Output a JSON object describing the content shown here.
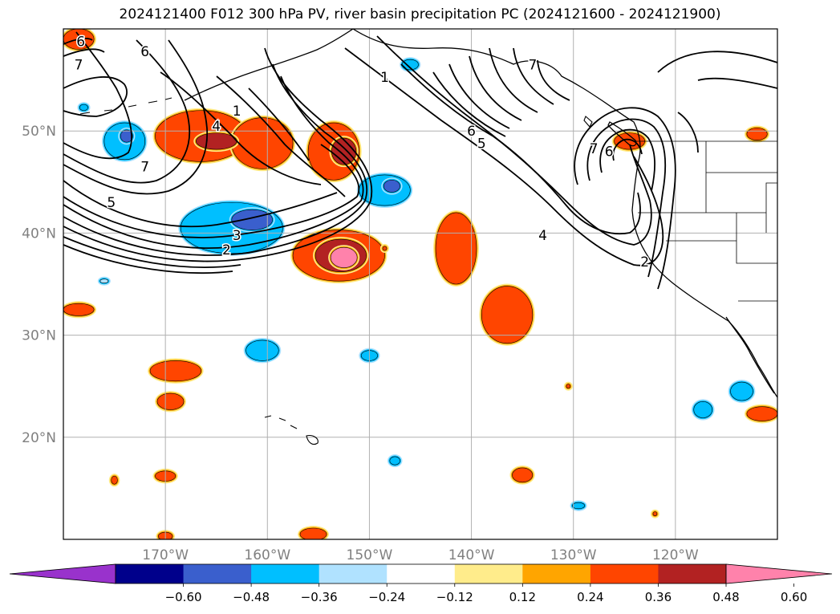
{
  "figure": {
    "title": "2024121400 F012 300 hPa PV, river basin precipitation PC (2024121600 - 2024121900)"
  },
  "map": {
    "lon_range": [
      -180,
      -110
    ],
    "lat_range": [
      10,
      60
    ],
    "lon_ticks": [
      {
        "value": -170,
        "label": "170°W"
      },
      {
        "value": -160,
        "label": "160°W"
      },
      {
        "value": -150,
        "label": "150°W"
      },
      {
        "value": -140,
        "label": "140°W"
      },
      {
        "value": -130,
        "label": "130°W"
      },
      {
        "value": -120,
        "label": "120°W"
      }
    ],
    "lat_ticks": [
      {
        "value": 20,
        "label": "20°N"
      },
      {
        "value": 30,
        "label": "30°N"
      },
      {
        "value": 40,
        "label": "40°N"
      },
      {
        "value": 50,
        "label": "50°N"
      }
    ],
    "gridlines": true,
    "coastlines": true,
    "tick_label_color": "#808080"
  },
  "colorbar": {
    "orientation": "horizontal",
    "extend": "both",
    "colors": [
      "#9932cc",
      "#00008b",
      "#3a5fcd",
      "#00bfff",
      "#b0e2ff",
      "#ffffff",
      "#ffec8b",
      "#ffa500",
      "#ff4500",
      "#b22222",
      "#ff82ab"
    ],
    "tick_labels": [
      "−0.60",
      "−0.48",
      "−0.36",
      "−0.24",
      "−0.12",
      "0.12",
      "0.24",
      "0.36",
      "0.48",
      "0.60"
    ]
  },
  "pv_contour_labels": [
    {
      "text": "6",
      "lon": -178.3,
      "lat": 58.8
    },
    {
      "text": "6",
      "lon": -172.0,
      "lat": 57.8
    },
    {
      "text": "7",
      "lon": -178.5,
      "lat": 56.5
    },
    {
      "text": "1",
      "lon": -163.0,
      "lat": 52.0
    },
    {
      "text": "4",
      "lon": -165.0,
      "lat": 50.5
    },
    {
      "text": "7",
      "lon": -172.0,
      "lat": 46.5
    },
    {
      "text": "5",
      "lon": -175.3,
      "lat": 43.0
    },
    {
      "text": "3",
      "lon": -163.0,
      "lat": 39.8
    },
    {
      "text": "2",
      "lon": -164.0,
      "lat": 38.4
    },
    {
      "text": "1",
      "lon": -148.5,
      "lat": 55.3
    },
    {
      "text": "7",
      "lon": -134.0,
      "lat": 56.5
    },
    {
      "text": "6",
      "lon": -140.0,
      "lat": 50.0
    },
    {
      "text": "5",
      "lon": -139.0,
      "lat": 48.8
    },
    {
      "text": "7",
      "lon": -128.0,
      "lat": 48.3
    },
    {
      "text": "6",
      "lon": -126.5,
      "lat": 48.0
    },
    {
      "text": "4",
      "lon": -133.0,
      "lat": 39.8
    },
    {
      "text": "2",
      "lon": -123.0,
      "lat": 37.2
    }
  ],
  "precip_blobs": [
    {
      "lon": -178.5,
      "lat": 59.0,
      "rx": 1.5,
      "ry": 1.0,
      "level": 0.36
    },
    {
      "lon": -166.5,
      "lat": 49.5,
      "rx": 4.5,
      "ry": 2.5,
      "level": 0.36
    },
    {
      "lon": -160.5,
      "lat": 48.8,
      "rx": 3.0,
      "ry": 2.5,
      "level": 0.36
    },
    {
      "lon": -165.0,
      "lat": 49.0,
      "rx": 2.0,
      "ry": 0.8,
      "level": 0.48
    },
    {
      "lon": -153.5,
      "lat": 48.0,
      "rx": 2.5,
      "ry": 2.8,
      "level": 0.36
    },
    {
      "lon": -152.5,
      "lat": 48.0,
      "rx": 1.2,
      "ry": 1.3,
      "level": 0.48
    },
    {
      "lon": -153.0,
      "lat": 37.8,
      "rx": 4.5,
      "ry": 2.5,
      "level": 0.36
    },
    {
      "lon": -152.8,
      "lat": 37.8,
      "rx": 2.5,
      "ry": 1.6,
      "level": 0.48
    },
    {
      "lon": -152.5,
      "lat": 37.6,
      "rx": 1.3,
      "ry": 1.0,
      "level": 0.6
    },
    {
      "lon": -141.5,
      "lat": 38.5,
      "rx": 2.0,
      "ry": 3.5,
      "level": 0.36
    },
    {
      "lon": -136.5,
      "lat": 32.0,
      "rx": 2.5,
      "ry": 2.8,
      "level": 0.36
    },
    {
      "lon": -169.0,
      "lat": 26.5,
      "rx": 2.5,
      "ry": 1.0,
      "level": 0.36
    },
    {
      "lon": -169.5,
      "lat": 23.5,
      "rx": 1.3,
      "ry": 0.8,
      "level": 0.36
    },
    {
      "lon": -178.5,
      "lat": 32.5,
      "rx": 1.5,
      "ry": 0.6,
      "level": 0.36
    },
    {
      "lon": -170.0,
      "lat": 16.2,
      "rx": 1.0,
      "ry": 0.5,
      "level": 0.36
    },
    {
      "lon": -135.0,
      "lat": 16.3,
      "rx": 1.0,
      "ry": 0.7,
      "level": 0.36
    },
    {
      "lon": -155.5,
      "lat": 10.5,
      "rx": 1.3,
      "ry": 0.6,
      "level": 0.36
    },
    {
      "lon": -111.5,
      "lat": 22.3,
      "rx": 1.5,
      "ry": 0.7,
      "level": 0.36
    },
    {
      "lon": -112.0,
      "lat": 49.7,
      "rx": 1.0,
      "ry": 0.6,
      "level": 0.36
    },
    {
      "lon": -124.5,
      "lat": 49.0,
      "rx": 1.5,
      "ry": 0.8,
      "level": 0.36
    },
    {
      "lon": -175.0,
      "lat": 15.8,
      "rx": 0.3,
      "ry": 0.4,
      "level": 0.36
    },
    {
      "lon": -170.0,
      "lat": 10.3,
      "rx": 0.7,
      "ry": 0.4,
      "level": 0.36
    },
    {
      "lon": -174.0,
      "lat": 49.0,
      "rx": 2.0,
      "ry": 1.8,
      "level": -0.36
    },
    {
      "lon": -173.8,
      "lat": 49.5,
      "rx": 0.6,
      "ry": 0.6,
      "level": -0.48
    },
    {
      "lon": -163.5,
      "lat": 40.5,
      "rx": 5.0,
      "ry": 2.5,
      "level": -0.36
    },
    {
      "lon": -161.5,
      "lat": 41.3,
      "rx": 2.0,
      "ry": 1.0,
      "level": -0.48
    },
    {
      "lon": -148.5,
      "lat": 44.2,
      "rx": 2.5,
      "ry": 1.5,
      "level": -0.36
    },
    {
      "lon": -147.8,
      "lat": 44.6,
      "rx": 0.8,
      "ry": 0.6,
      "level": -0.48
    },
    {
      "lon": -160.5,
      "lat": 28.5,
      "rx": 1.6,
      "ry": 1.0,
      "level": -0.36
    },
    {
      "lon": -146.0,
      "lat": 56.5,
      "rx": 0.8,
      "ry": 0.5,
      "level": -0.36
    },
    {
      "lon": -150.0,
      "lat": 28.0,
      "rx": 0.8,
      "ry": 0.5,
      "level": -0.36
    },
    {
      "lon": -113.5,
      "lat": 24.5,
      "rx": 1.1,
      "ry": 0.9,
      "level": -0.36
    },
    {
      "lon": -117.3,
      "lat": 22.7,
      "rx": 0.9,
      "ry": 0.8,
      "level": -0.36
    },
    {
      "lon": -178.0,
      "lat": 52.3,
      "rx": 0.4,
      "ry": 0.3,
      "level": -0.36
    },
    {
      "lon": -176.0,
      "lat": 35.3,
      "rx": 0.4,
      "ry": 0.2,
      "level": -0.24
    },
    {
      "lon": -147.5,
      "lat": 17.7,
      "rx": 0.5,
      "ry": 0.4,
      "level": -0.36
    },
    {
      "lon": -129.5,
      "lat": 13.3,
      "rx": 0.6,
      "ry": 0.3,
      "level": -0.36
    },
    {
      "lon": -130.5,
      "lat": 25.0,
      "rx": 0.2,
      "ry": 0.2,
      "level": 0.36
    },
    {
      "lon": -148.5,
      "lat": 38.5,
      "rx": 0.2,
      "ry": 0.2,
      "level": 0.36
    },
    {
      "lon": -122.0,
      "lat": 12.5,
      "rx": 0.2,
      "ry": 0.2,
      "level": 0.36
    }
  ]
}
